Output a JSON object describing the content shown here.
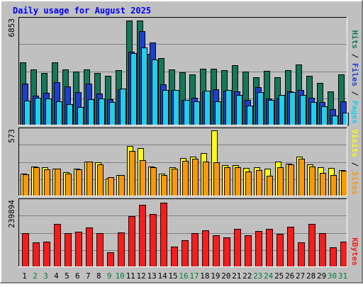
{
  "chart_data": [
    {
      "type": "bar",
      "title": "Daily usage for August 2025",
      "categories": [
        "1",
        "2",
        "3",
        "4",
        "5",
        "6",
        "7",
        "8",
        "9",
        "10",
        "11",
        "12",
        "13",
        "14",
        "15",
        "16",
        "17",
        "18",
        "19",
        "20",
        "21",
        "22",
        "23",
        "24",
        "25",
        "26",
        "27",
        "28",
        "29",
        "30",
        "31"
      ],
      "weekend_days": [
        "2",
        "3",
        "9",
        "10",
        "16",
        "17",
        "23",
        "24",
        "30",
        "31"
      ],
      "ymax_label": "6853",
      "right_labels": [
        "Pages",
        "Files",
        "Hits"
      ],
      "series": [
        {
          "name": "Hits",
          "color": "#117a5a",
          "values": [
            4100,
            3650,
            3400,
            4100,
            3650,
            3500,
            3650,
            3400,
            3200,
            3600,
            6800,
            6800,
            4650,
            4350,
            3650,
            3450,
            3300,
            3700,
            3700,
            3600,
            3900,
            3500,
            3150,
            3550,
            3150,
            3600,
            3950,
            3200,
            2750,
            2200,
            3300
          ]
        },
        {
          "name": "Files",
          "color": "#1a3fd6",
          "values": [
            2700,
            1950,
            2100,
            2800,
            2550,
            2150,
            2700,
            2050,
            1700,
            2350,
            4800,
            6100,
            5400,
            2650,
            2300,
            1650,
            1800,
            2200,
            2350,
            2250,
            2200,
            1650,
            2500,
            1750,
            1750,
            2200,
            2300,
            1800,
            1500,
            1050,
            1550
          ]
        },
        {
          "name": "Pages",
          "color": "#1ad2f0",
          "values": [
            1600,
            1800,
            1750,
            1550,
            1400,
            1200,
            1700,
            1750,
            1500,
            2400,
            4700,
            5050,
            4300,
            2300,
            2300,
            1650,
            1550,
            2250,
            1550,
            2300,
            2000,
            1300,
            2150,
            1650,
            2000,
            2150,
            2000,
            1500,
            1250,
            650,
            850
          ]
        }
      ]
    },
    {
      "type": "bar",
      "categories": [
        "1",
        "2",
        "3",
        "4",
        "5",
        "6",
        "7",
        "8",
        "9",
        "10",
        "11",
        "12",
        "13",
        "14",
        "15",
        "16",
        "17",
        "18",
        "19",
        "20",
        "21",
        "22",
        "23",
        "24",
        "25",
        "26",
        "27",
        "28",
        "29",
        "30",
        "31"
      ],
      "ymax_label": "573",
      "right_labels": [
        "Sites",
        "Visits"
      ],
      "series": [
        {
          "name": "Visits",
          "color": "#ffff00",
          "values": [
            200,
            260,
            255,
            240,
            210,
            240,
            300,
            295,
            155,
            185,
            435,
            420,
            260,
            195,
            255,
            335,
            345,
            375,
            573,
            270,
            270,
            245,
            255,
            240,
            300,
            285,
            345,
            280,
            250,
            245,
            230
          ]
        },
        {
          "name": "Sites",
          "color": "#ff9800",
          "values": [
            190,
            250,
            235,
            240,
            200,
            235,
            300,
            280,
            165,
            185,
            395,
            315,
            250,
            185,
            240,
            305,
            325,
            300,
            295,
            250,
            255,
            215,
            230,
            180,
            250,
            280,
            325,
            260,
            205,
            185,
            220
          ]
        }
      ]
    },
    {
      "type": "bar",
      "categories": [
        "1",
        "2",
        "3",
        "4",
        "5",
        "6",
        "7",
        "8",
        "9",
        "10",
        "11",
        "12",
        "13",
        "14",
        "15",
        "16",
        "17",
        "18",
        "19",
        "20",
        "21",
        "22",
        "23",
        "24",
        "25",
        "26",
        "27",
        "28",
        "29",
        "30",
        "31"
      ],
      "ymax_label": "239894",
      "right_labels": [
        "KBytes"
      ],
      "series": [
        {
          "name": "KBytes",
          "color": "#ff1a1a",
          "values": [
            123000,
            90000,
            93000,
            158000,
            124000,
            128000,
            144000,
            124000,
            53000,
            126000,
            186000,
            226000,
            193000,
            236000,
            76000,
            98000,
            124000,
            135000,
            116000,
            109000,
            140000,
            116000,
            131000,
            140000,
            120000,
            147000,
            89000,
            157000,
            125000,
            72000,
            93000
          ]
        }
      ]
    }
  ]
}
